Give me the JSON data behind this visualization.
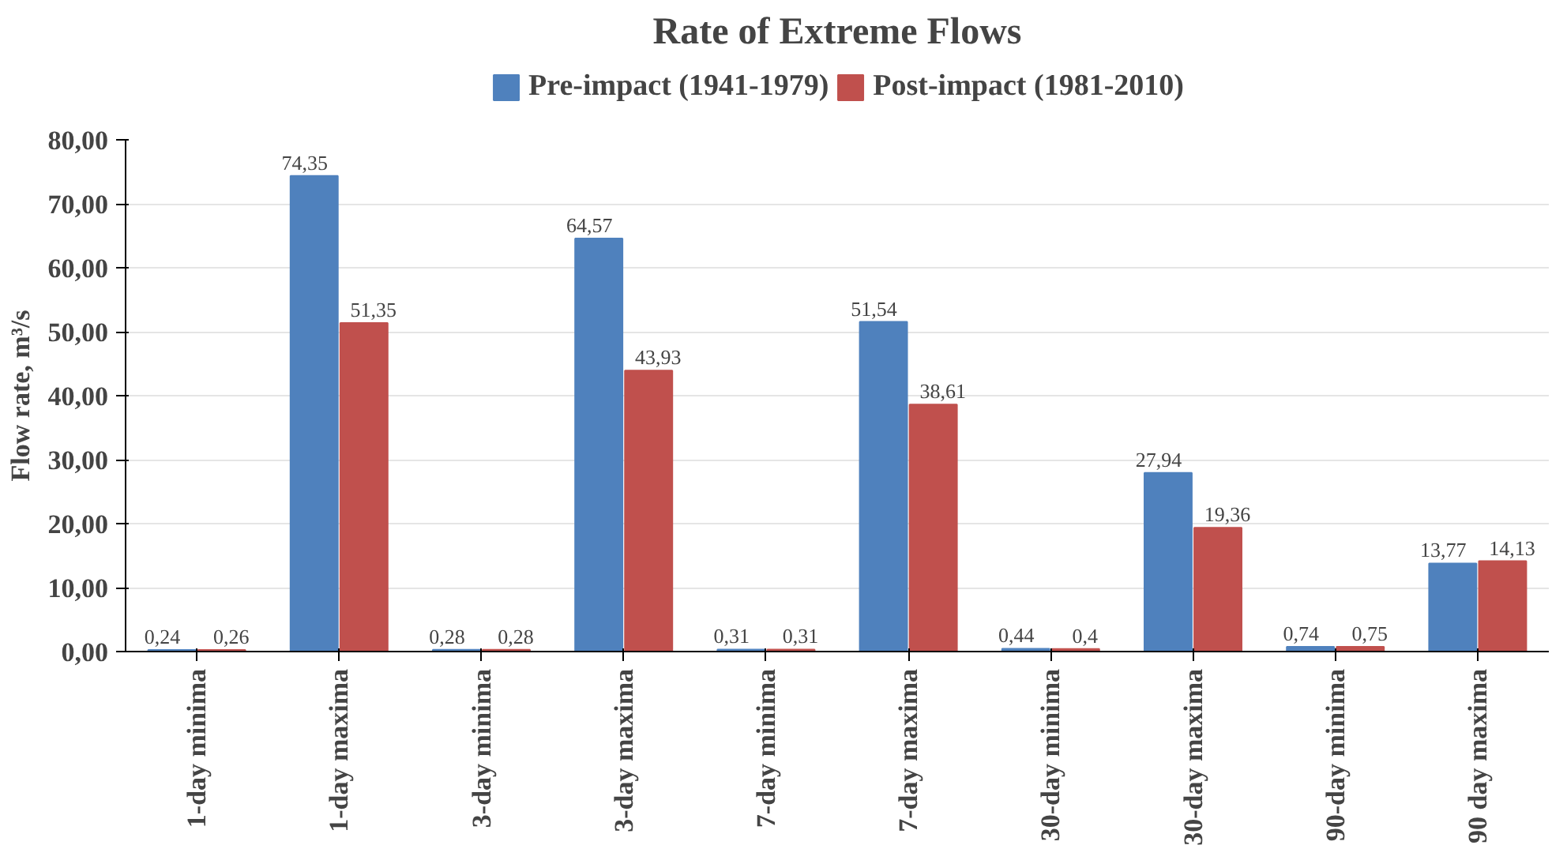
{
  "chart_data": {
    "type": "bar",
    "title": "Rate of Extreme Flows",
    "ylabel": "Flow rate, m³/s",
    "categories": [
      "1-day minima",
      "1-day maxima",
      "3-day minima",
      "3-day maxima",
      "7-day minima",
      "7-day maxima",
      "30-day minima",
      "30-day maxima",
      "90-day minima",
      "90 day maxima"
    ],
    "series": [
      {
        "name": "Pre-impact (1941-1979)",
        "color": "#4f81bd",
        "values": [
          0.24,
          74.35,
          0.28,
          64.57,
          0.31,
          51.54,
          0.44,
          27.94,
          0.74,
          13.77
        ],
        "value_labels": [
          "0,24",
          "74,35",
          "0,28",
          "64,57",
          "0,31",
          "51,54",
          "0,44",
          "27,94",
          "0,74",
          "13,77"
        ]
      },
      {
        "name": "Post-impact (1981-2010)",
        "color": "#c0504d",
        "values": [
          0.26,
          51.35,
          0.28,
          43.93,
          0.31,
          38.61,
          0.4,
          19.36,
          0.75,
          14.13
        ],
        "value_labels": [
          "0,26",
          "51,35",
          "0,28",
          "43,93",
          "0,31",
          "38,61",
          "0,4",
          "19,36",
          "0,75",
          "14,13"
        ]
      }
    ],
    "ylim": [
      0,
      80
    ],
    "yticks": [
      {
        "value": 0,
        "label": "0,00"
      },
      {
        "value": 10,
        "label": "10,00"
      },
      {
        "value": 20,
        "label": "20,00"
      },
      {
        "value": 30,
        "label": "30,00"
      },
      {
        "value": 40,
        "label": "40,00"
      },
      {
        "value": 50,
        "label": "50,00"
      },
      {
        "value": 60,
        "label": "60,00"
      },
      {
        "value": 70,
        "label": "70,00"
      },
      {
        "value": 80,
        "label": "80,00"
      }
    ],
    "grid": "y",
    "legend": "top"
  }
}
